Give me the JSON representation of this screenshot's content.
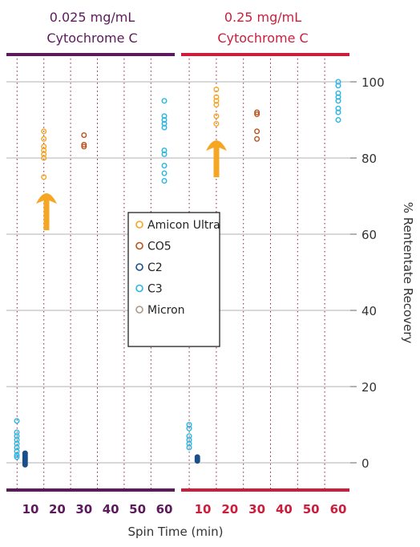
{
  "chart_data": {
    "type": "scatter",
    "title": "",
    "xlabel": "Spin Time (min)",
    "ylabel": "% Rententate Recovery",
    "ylim": [
      -5,
      105
    ],
    "y_ticks": [
      0,
      20,
      40,
      60,
      80,
      100
    ],
    "grid": true,
    "legend_position": "center",
    "panels": [
      {
        "header": [
          "0.025 mg/mL",
          "Cytochrome C"
        ],
        "color": "#5c1a5c",
        "x_ticks": [
          "10",
          "20",
          "30",
          "40",
          "50",
          "60"
        ]
      },
      {
        "header": [
          "0.25 mg/mL",
          "Cytochrome C"
        ],
        "color": "#cc1e3c",
        "x_ticks": [
          "10",
          "20",
          "30",
          "40",
          "50",
          "60"
        ]
      }
    ],
    "series": [
      {
        "name": "Amicon Ultra",
        "color": "#f5a623",
        "points": [
          {
            "panel": 0,
            "x": 15,
            "y": 87
          },
          {
            "panel": 0,
            "x": 15,
            "y": 85
          },
          {
            "panel": 0,
            "x": 15,
            "y": 83
          },
          {
            "panel": 0,
            "x": 15,
            "y": 82
          },
          {
            "panel": 0,
            "x": 15,
            "y": 81
          },
          {
            "panel": 0,
            "x": 15,
            "y": 80
          },
          {
            "panel": 0,
            "x": 15,
            "y": 75
          },
          {
            "panel": 1,
            "x": 15,
            "y": 98
          },
          {
            "panel": 1,
            "x": 15,
            "y": 96
          },
          {
            "panel": 1,
            "x": 15,
            "y": 95
          },
          {
            "panel": 1,
            "x": 15,
            "y": 94
          },
          {
            "panel": 1,
            "x": 15,
            "y": 91
          },
          {
            "panel": 1,
            "x": 15,
            "y": 89
          }
        ]
      },
      {
        "name": "CO5",
        "color": "#b5541f",
        "points": [
          {
            "panel": 0,
            "x": 30,
            "y": 86
          },
          {
            "panel": 0,
            "x": 30,
            "y": 83.5
          },
          {
            "panel": 0,
            "x": 30,
            "y": 83
          },
          {
            "panel": 1,
            "x": 30,
            "y": 92
          },
          {
            "panel": 1,
            "x": 30,
            "y": 91.5
          },
          {
            "panel": 1,
            "x": 30,
            "y": 87
          },
          {
            "panel": 1,
            "x": 30,
            "y": 85
          }
        ]
      },
      {
        "name": "C2",
        "color": "#1a4f8a",
        "points": [
          {
            "panel": 0,
            "x": 8,
            "y": 2.5
          },
          {
            "panel": 0,
            "x": 8,
            "y": 2
          },
          {
            "panel": 0,
            "x": 8,
            "y": 1.5
          },
          {
            "panel": 0,
            "x": 8,
            "y": 1
          },
          {
            "panel": 0,
            "x": 8,
            "y": 0.5
          },
          {
            "panel": 0,
            "x": 8,
            "y": 0
          },
          {
            "panel": 0,
            "x": 8,
            "y": -0.5
          },
          {
            "panel": 1,
            "x": 8,
            "y": 1.5
          },
          {
            "panel": 1,
            "x": 8,
            "y": 1
          },
          {
            "panel": 1,
            "x": 8,
            "y": 0.5
          }
        ]
      },
      {
        "name": "C3",
        "color": "#29b6e3",
        "points": [
          {
            "panel": 0,
            "x": 1,
            "y": 11
          },
          {
            "panel": 0,
            "x": 1,
            "y": 8
          },
          {
            "panel": 0,
            "x": 1,
            "y": 7
          },
          {
            "panel": 0,
            "x": 1,
            "y": 6
          },
          {
            "panel": 0,
            "x": 1,
            "y": 5
          },
          {
            "panel": 0,
            "x": 1,
            "y": 4
          },
          {
            "panel": 0,
            "x": 1,
            "y": 3
          },
          {
            "panel": 0,
            "x": 1,
            "y": 2
          },
          {
            "panel": 0,
            "x": 1,
            "y": 1.5
          },
          {
            "panel": 0,
            "x": 60,
            "y": 95
          },
          {
            "panel": 0,
            "x": 60,
            "y": 91
          },
          {
            "panel": 0,
            "x": 60,
            "y": 90
          },
          {
            "panel": 0,
            "x": 60,
            "y": 89
          },
          {
            "panel": 0,
            "x": 60,
            "y": 88
          },
          {
            "panel": 0,
            "x": 60,
            "y": 82
          },
          {
            "panel": 0,
            "x": 60,
            "y": 81
          },
          {
            "panel": 0,
            "x": 60,
            "y": 78
          },
          {
            "panel": 0,
            "x": 60,
            "y": 76
          },
          {
            "panel": 0,
            "x": 60,
            "y": 74
          },
          {
            "panel": 1,
            "x": 1,
            "y": 10
          },
          {
            "panel": 1,
            "x": 1,
            "y": 9
          },
          {
            "panel": 1,
            "x": 1,
            "y": 7
          },
          {
            "panel": 1,
            "x": 1,
            "y": 6
          },
          {
            "panel": 1,
            "x": 1,
            "y": 5
          },
          {
            "panel": 1,
            "x": 1,
            "y": 4
          },
          {
            "panel": 1,
            "x": 60,
            "y": 100
          },
          {
            "panel": 1,
            "x": 60,
            "y": 99
          },
          {
            "panel": 1,
            "x": 60,
            "y": 97
          },
          {
            "panel": 1,
            "x": 60,
            "y": 96
          },
          {
            "panel": 1,
            "x": 60,
            "y": 95
          },
          {
            "panel": 1,
            "x": 60,
            "y": 93
          },
          {
            "panel": 1,
            "x": 60,
            "y": 92
          },
          {
            "panel": 1,
            "x": 60,
            "y": 90
          }
        ]
      },
      {
        "name": "Micron",
        "color": "#a89888",
        "points": []
      }
    ]
  },
  "colors": {
    "arrow": "#f5a623",
    "gridline": "#999999",
    "dotted_line": "#8b1a4a"
  }
}
